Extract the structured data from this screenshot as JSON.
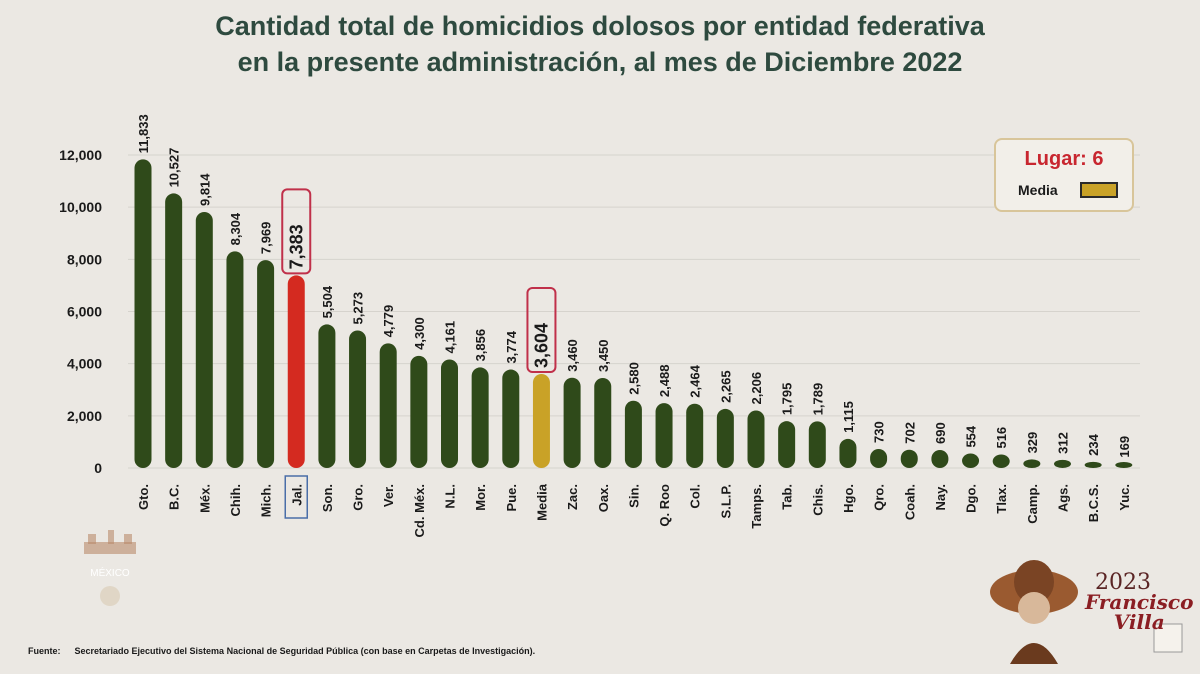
{
  "header": {
    "title_line1": "Cantidad total de homicidios dolosos por entidad federativa",
    "title_line2": "en la presente administración, al mes de Diciembre 2022"
  },
  "legend": {
    "rank_label": "Lugar: 6",
    "media_label": "Media",
    "media_color": "#c9a227"
  },
  "source": {
    "label": "Fuente:",
    "text": "Secretariado Ejecutivo del Sistema Nacional de Seguridad Pública (con base en Carpetas de Investigación)."
  },
  "logos": {
    "left_text": "MÉXICO",
    "right_year": "2023",
    "right_name_1": "Francisco",
    "right_name_2": "Villa"
  },
  "chart_data": {
    "type": "bar",
    "title": "Cantidad total de homicidios dolosos por entidad federativa en la presente administración, al mes de Diciembre 2022",
    "ylim": [
      0,
      12000
    ],
    "yticks": [
      "0",
      "2,000",
      "4,000",
      "6,000",
      "8,000",
      "10,000",
      "12,000"
    ],
    "grid": true,
    "legend_position": "top-right",
    "categories": [
      "Gto.",
      "B.C.",
      "Méx.",
      "Chih.",
      "Mich.",
      "Jal.",
      "Son.",
      "Gro.",
      "Ver.",
      "Cd. Méx.",
      "N.L.",
      "Mor.",
      "Pue.",
      "Media",
      "Zac.",
      "Oax.",
      "Sin.",
      "Q. Roo",
      "Col.",
      "S.L.P.",
      "Tamps.",
      "Tab.",
      "Chis.",
      "Hgo.",
      "Qro.",
      "Coah.",
      "Nay.",
      "Dgo.",
      "Tlax.",
      "Camp.",
      "Ags.",
      "B.C.S.",
      "Yuc."
    ],
    "values": [
      11833,
      10527,
      9814,
      8304,
      7969,
      7383,
      5504,
      5273,
      4779,
      4300,
      4161,
      3856,
      3774,
      3604,
      3460,
      3450,
      2580,
      2488,
      2464,
      2265,
      2206,
      1795,
      1789,
      1115,
      730,
      702,
      690,
      554,
      516,
      329,
      312,
      234,
      169
    ],
    "value_labels": [
      "11,833",
      "10,527",
      "9,814",
      "8,304",
      "7,969",
      "7,383",
      "5,504",
      "5,273",
      "4,779",
      "4,300",
      "4,161",
      "3,856",
      "3,774",
      "3,604",
      "3,460",
      "3,450",
      "2,580",
      "2,488",
      "2,464",
      "2,265",
      "2,206",
      "1,795",
      "1,789",
      "1,115",
      "730",
      "702",
      "690",
      "554",
      "516",
      "329",
      "312",
      "234",
      "169"
    ],
    "colors": {
      "default": "#2f4a1a",
      "highlight": "#d42a20",
      "media": "#c9a227",
      "highlight_box": "#c0304a"
    },
    "highlight_category": "Jal.",
    "media_category": "Media"
  }
}
